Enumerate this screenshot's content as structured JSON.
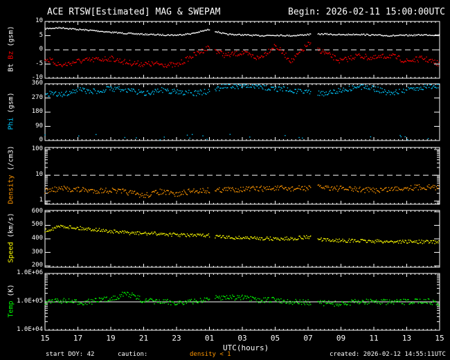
{
  "header": {
    "title": "ACE RTSW[Estimated] MAG & SWEPAM",
    "begin": "Begin: 2026-02-11 15:00:00UTC"
  },
  "footer": {
    "start_doy": "start DOY:  42",
    "caution": "caution:",
    "density_note": "density < 1",
    "xlabel": "UTC(hours)",
    "created": "created: 2026-02-12 14:55:11UTC"
  },
  "colors": {
    "bt": "#ffffff",
    "bz": "#ff0000",
    "phi": "#00c8ff",
    "density": "#ff9600",
    "speed": "#ffff00",
    "temp": "#00ff00"
  },
  "chart_data": {
    "type": "scatter",
    "x_tick_labels": [
      "15",
      "17",
      "19",
      "21",
      "23",
      "01",
      "03",
      "05",
      "07",
      "09",
      "11",
      "13",
      "15"
    ],
    "x_hours_from_start": [
      0,
      1,
      2,
      3,
      4,
      5,
      6,
      7,
      8,
      9,
      10,
      11,
      12,
      13,
      14,
      15,
      16,
      17,
      18,
      19,
      20,
      21,
      22,
      23,
      24
    ],
    "gaps_hours": [
      [
        10.05,
        10.35
      ],
      [
        16.2,
        16.6
      ]
    ],
    "panels": [
      {
        "id": "mag",
        "ylabel_parts": [
          "Bt",
          "Bz",
          "(gsm)"
        ],
        "ylim": [
          -10,
          10
        ],
        "scale": "linear",
        "ticks": [
          "10",
          "5",
          "0",
          "-5",
          "-10"
        ],
        "tick_values": [
          10,
          5,
          0,
          -5,
          -10
        ],
        "ref_line": 0,
        "series": [
          {
            "name": "Bt",
            "color_key": "bt",
            "values": [
              7.5,
              7.8,
              7.2,
              6.8,
              6.2,
              5.8,
              5.5,
              5.3,
              5.2,
              5.8,
              7.2,
              5.5,
              5.3,
              5.0,
              5.2,
              5.0,
              5.4,
              5.6,
              5.3,
              5.5,
              5.2,
              5.0,
              5.1,
              5.3,
              5.2
            ]
          },
          {
            "name": "Bz",
            "color_key": "bz",
            "values": [
              -3,
              -5.5,
              -4,
              -3.5,
              -3,
              -4.5,
              -5,
              -5,
              -5.5,
              -2,
              1,
              -2,
              -1,
              -3,
              1.5,
              -4,
              2,
              -1,
              -4,
              -2,
              -3,
              -2,
              -4,
              -3,
              -5
            ]
          }
        ]
      },
      {
        "id": "phi",
        "ylabel_parts": [
          "Phi",
          "(gsm)"
        ],
        "ylim": [
          0,
          360
        ],
        "scale": "linear",
        "ticks": [
          "360",
          "270",
          "180",
          "90",
          "0"
        ],
        "tick_values": [
          360,
          270,
          180,
          90,
          0
        ],
        "series": [
          {
            "name": "Phi",
            "color_key": "phi",
            "values": [
              300,
              290,
              320,
              310,
              330,
              320,
              300,
              320,
              310,
              300,
              310,
              350,
              345,
              340,
              330,
              320,
              310,
              300,
              320,
              340,
              330,
              300,
              320,
              340,
              350
            ]
          }
        ]
      },
      {
        "id": "density",
        "ylabel_parts": [
          "Density",
          "(/cm3)"
        ],
        "ylim": [
          0.75,
          120
        ],
        "scale": "log",
        "ticks": [
          "100",
          "10",
          "1"
        ],
        "tick_values": [
          100,
          10,
          1
        ],
        "ref_line": 10,
        "series": [
          {
            "name": "Density",
            "color_key": "density",
            "values": [
              2.5,
              3,
              2.8,
              2.5,
              2.6,
              2.2,
              1.6,
              2.3,
              1.8,
              2.5,
              2.6,
              2.8,
              2.9,
              3,
              3.1,
              3,
              3.2,
              3.5,
              3,
              2.8,
              2.6,
              2.9,
              3.3,
              3.5,
              3.4
            ]
          }
        ]
      },
      {
        "id": "speed",
        "ylabel_parts": [
          "Speed",
          "(km/s)"
        ],
        "ylim": [
          190,
          610
        ],
        "scale": "linear",
        "ticks": [
          "600",
          "500",
          "400",
          "300",
          "200"
        ],
        "tick_values": [
          600,
          500,
          400,
          300,
          200
        ],
        "series": [
          {
            "name": "Speed",
            "color_key": "speed",
            "values": [
              460,
              495,
              480,
              470,
              455,
              445,
              440,
              438,
              430,
              425,
              425,
              410,
              408,
              405,
              400,
              402,
              415,
              390,
              388,
              385,
              382,
              380,
              380,
              378,
              378
            ]
          }
        ]
      },
      {
        "id": "temp",
        "ylabel_parts": [
          "Temp",
          "(K)"
        ],
        "ylim": [
          10000,
          1000000
        ],
        "scale": "log",
        "ticks": [
          "1.0E+06",
          "1.0E+05",
          "1.0E+04"
        ],
        "tick_values": [
          1000000,
          100000,
          10000
        ],
        "ref_line": 100000,
        "series": [
          {
            "name": "Temp",
            "color_key": "temp",
            "values": [
              100000,
              110000,
              95000,
              105000,
              130000,
              200000,
              110000,
              100000,
              95000,
              100000,
              130000,
              150000,
              140000,
              110000,
              120000,
              100000,
              95000,
              90000,
              85000,
              100000,
              105000,
              95000,
              100000,
              110000,
              90000
            ]
          }
        ]
      }
    ]
  }
}
